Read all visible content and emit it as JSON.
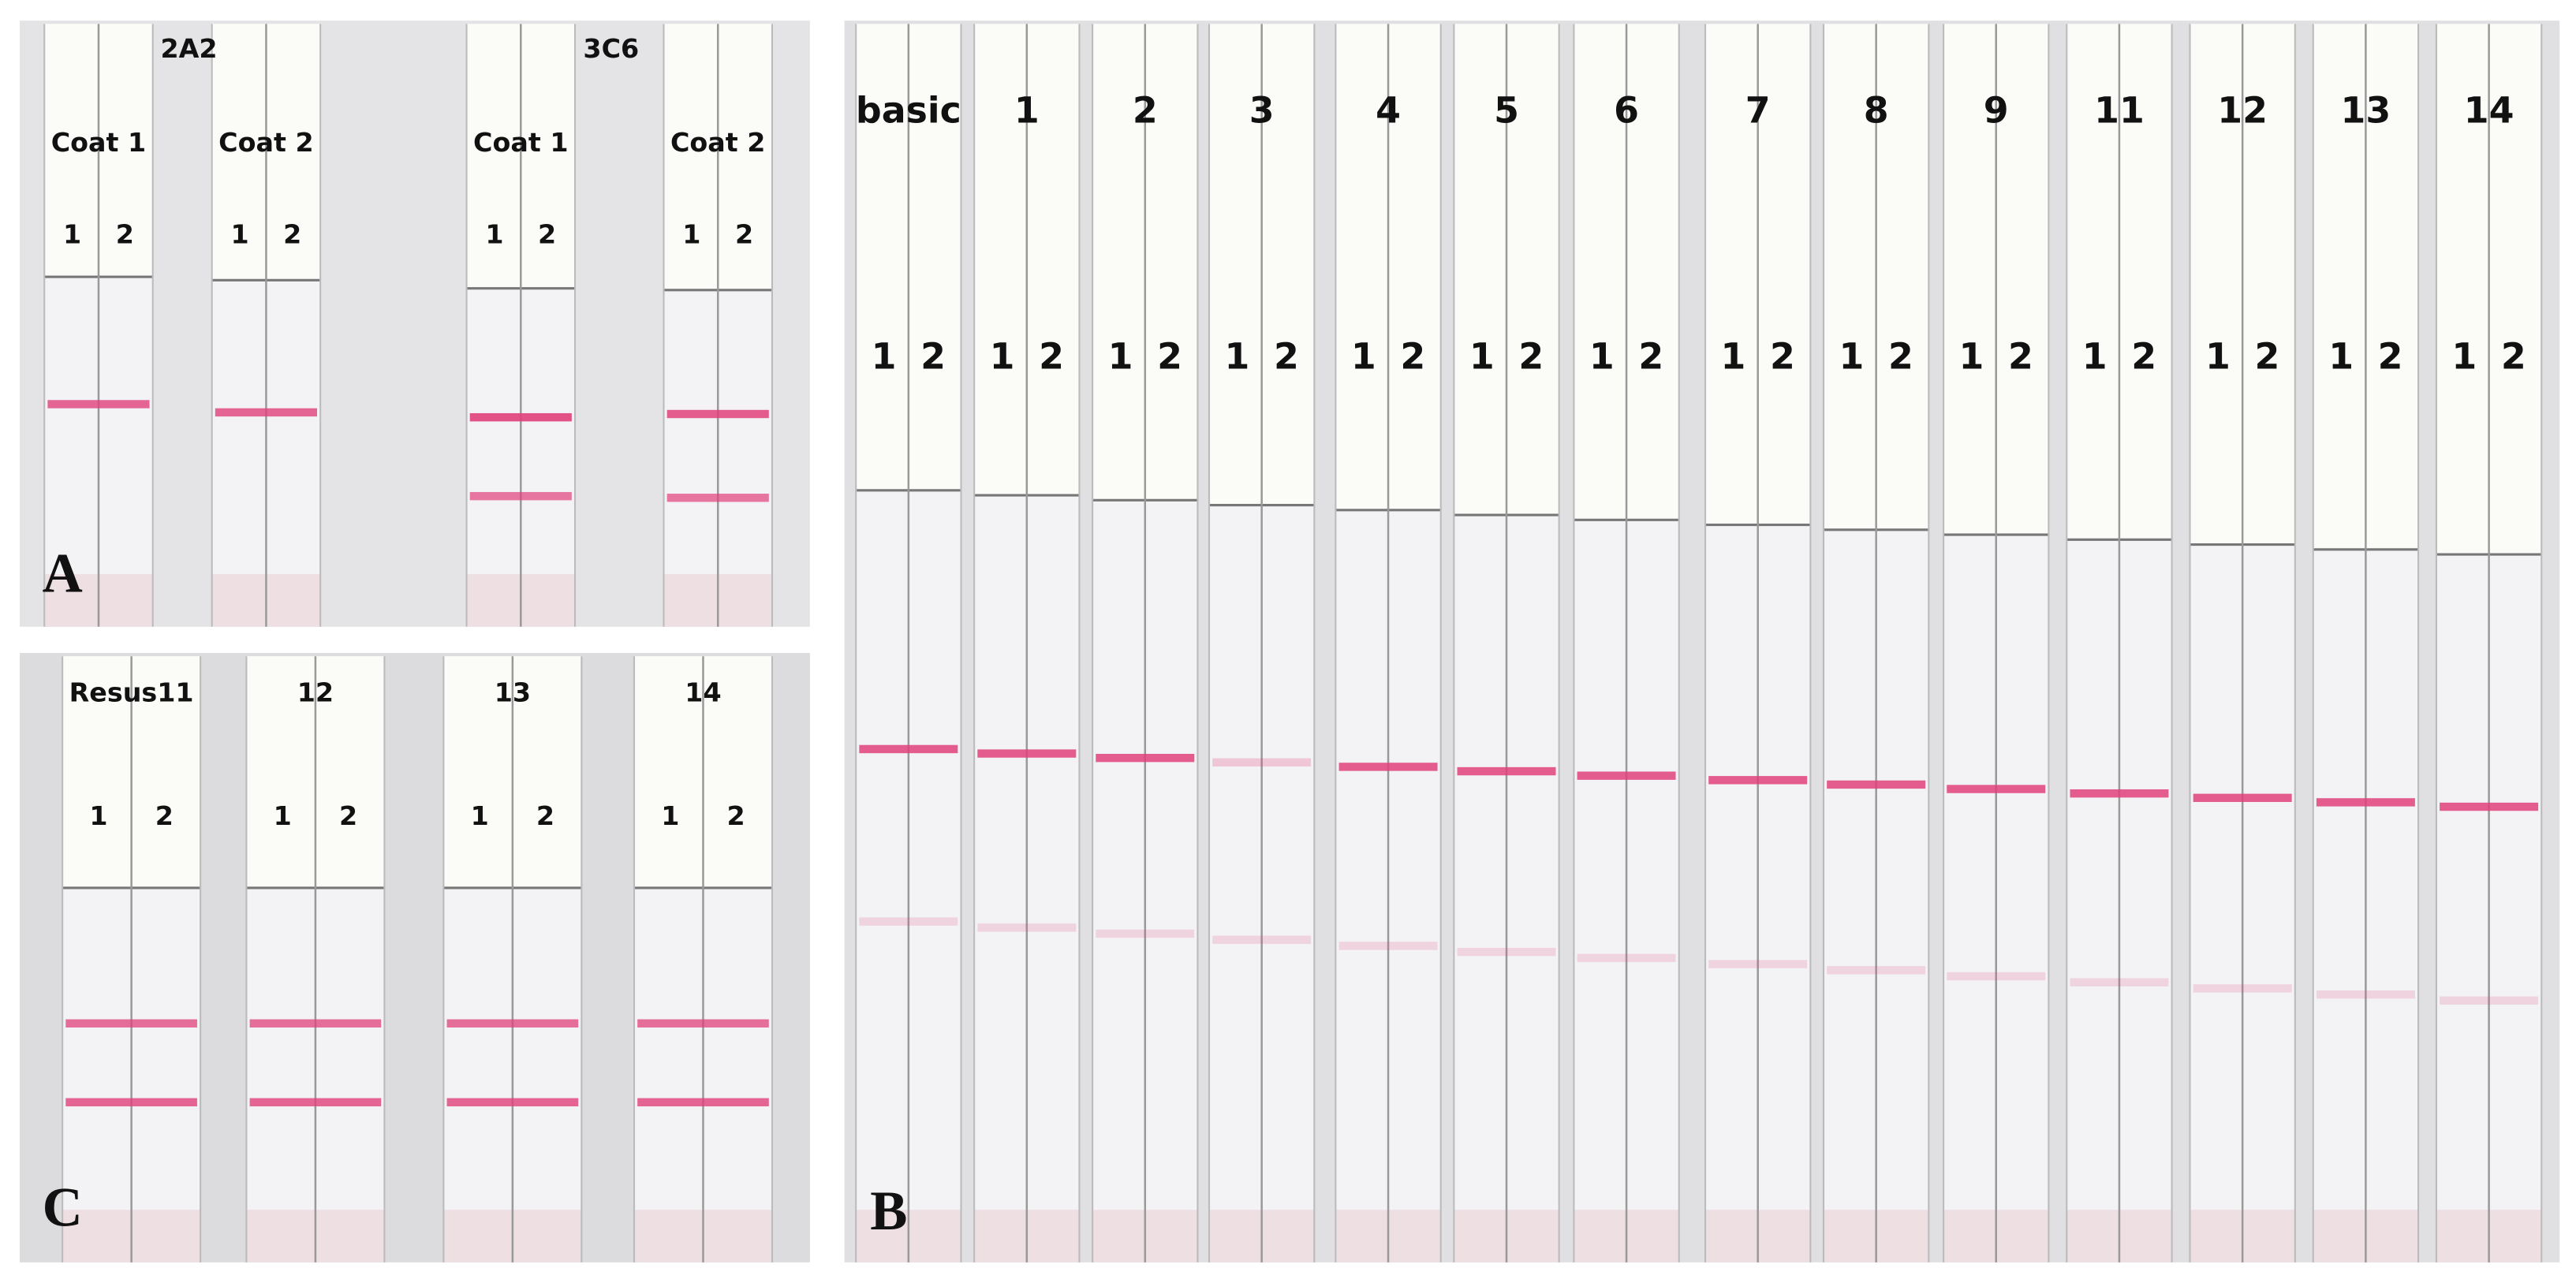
{
  "panel_a": {
    "letter": "A",
    "antibodies": [
      {
        "name": "2A2",
        "coats": [
          {
            "label": "Coat 1",
            "strips": [
              "1",
              "2"
            ]
          },
          {
            "label": "Coat 2",
            "strips": [
              "1",
              "2"
            ]
          }
        ]
      },
      {
        "name": "3C6",
        "coats": [
          {
            "label": "Coat 1",
            "strips": [
              "1",
              "2"
            ]
          },
          {
            "label": "Coat 2",
            "strips": [
              "1",
              "2"
            ]
          }
        ]
      }
    ]
  },
  "panel_b": {
    "letter": "B",
    "samples": [
      {
        "label": "basic",
        "strips": [
          "1",
          "2"
        ]
      },
      {
        "label": "1",
        "strips": [
          "1",
          "2"
        ]
      },
      {
        "label": "2",
        "strips": [
          "1",
          "2"
        ]
      },
      {
        "label": "3",
        "strips": [
          "1",
          "2"
        ]
      },
      {
        "label": "4",
        "strips": [
          "1",
          "2"
        ]
      },
      {
        "label": "5",
        "strips": [
          "1",
          "2"
        ]
      },
      {
        "label": "6",
        "strips": [
          "1",
          "2"
        ]
      },
      {
        "label": "7",
        "strips": [
          "1",
          "2"
        ]
      },
      {
        "label": "8",
        "strips": [
          "1",
          "2"
        ]
      },
      {
        "label": "9",
        "strips": [
          "1",
          "2"
        ]
      },
      {
        "label": "11",
        "strips": [
          "1",
          "2"
        ]
      },
      {
        "label": "12",
        "strips": [
          "1",
          "2"
        ]
      },
      {
        "label": "13",
        "strips": [
          "1",
          "2"
        ]
      },
      {
        "label": "14",
        "strips": [
          "1",
          "2"
        ]
      }
    ]
  },
  "panel_c": {
    "letter": "C",
    "samples": [
      {
        "label": "Resus11",
        "strips": [
          "1",
          "2"
        ]
      },
      {
        "label": "12",
        "strips": [
          "1",
          "2"
        ]
      },
      {
        "label": "13",
        "strips": [
          "1",
          "2"
        ]
      },
      {
        "label": "14",
        "strips": [
          "1",
          "2"
        ]
      }
    ]
  }
}
